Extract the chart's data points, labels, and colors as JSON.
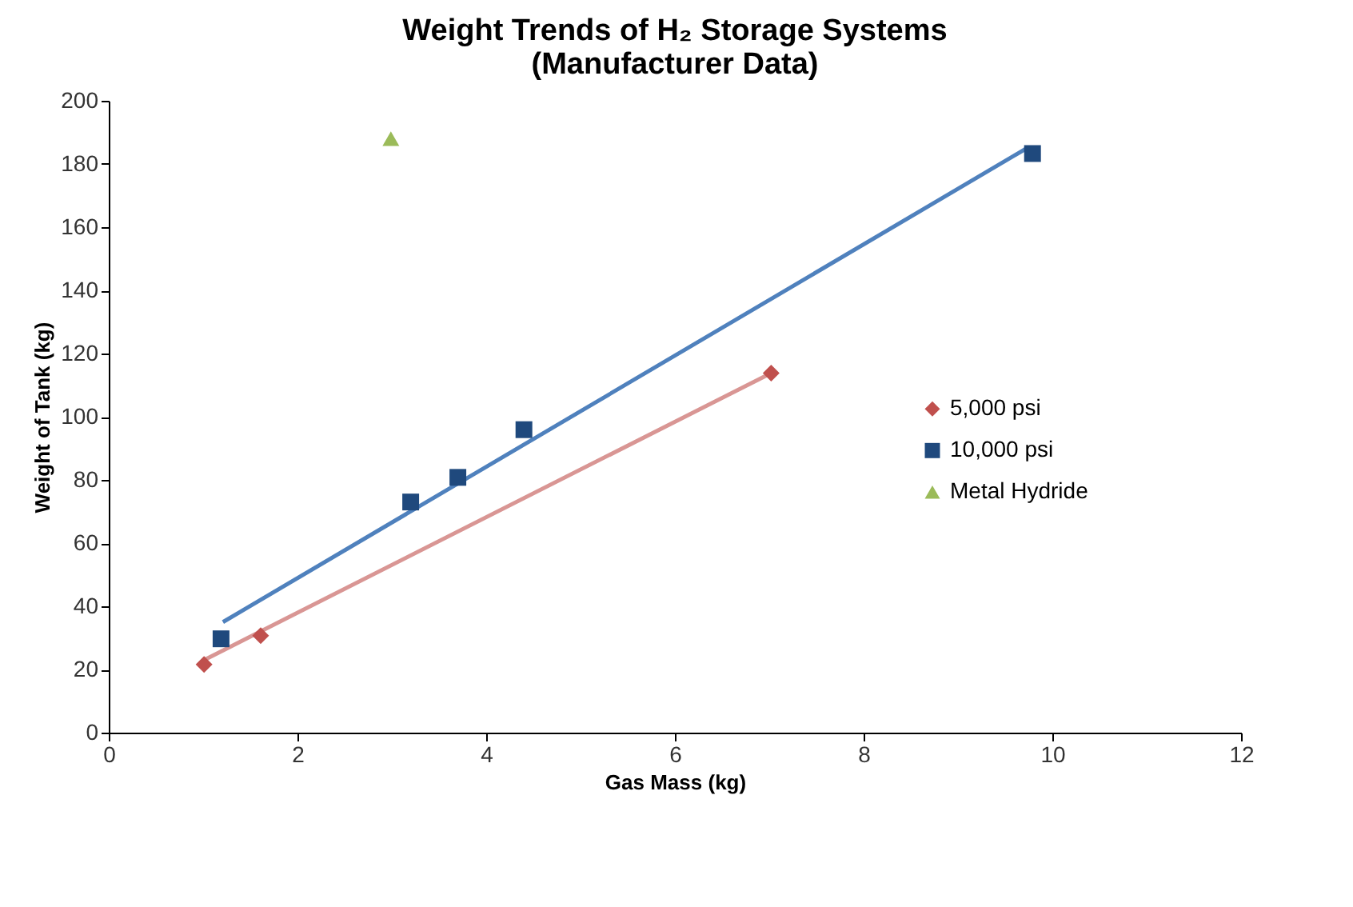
{
  "chart_data": {
    "type": "scatter",
    "title": "Weight Trends of H₂ Storage Systems",
    "subtitle": "(Manufacturer Data)",
    "xlabel": "Gas Mass (kg)",
    "ylabel": "Weight of Tank (kg)",
    "xlim": [
      0,
      12
    ],
    "xticks": [
      0,
      2,
      4,
      6,
      8,
      10,
      12
    ],
    "ylim": [
      0,
      200
    ],
    "yticks": [
      0,
      20,
      40,
      60,
      80,
      100,
      120,
      140,
      160,
      180,
      200
    ],
    "grid": false,
    "legend": "right",
    "series": [
      {
        "type": "line",
        "color": "#d99694",
        "marker": "none",
        "x": [
          1.01,
          7.02
        ],
        "values": [
          23,
          113.8
        ]
      },
      {
        "type": "line",
        "color": "#4f81bd",
        "marker": "none",
        "x": [
          1.21,
          9.73
        ],
        "values": [
          35,
          185
        ]
      },
      {
        "name": "5,000 psi",
        "color": "#c0504d",
        "marker": "diamond",
        "x": [
          1.01,
          1.61,
          7.02
        ],
        "values": [
          21.6,
          30.7,
          113.8
        ]
      },
      {
        "name": "10,000 psi",
        "color": "#1f497d",
        "marker": "square",
        "x": [
          1.19,
          3.2,
          3.7,
          4.4,
          9.79
        ],
        "values": [
          29.7,
          73,
          80.8,
          95.9,
          183.3
        ]
      },
      {
        "name": "Metal Hydride",
        "color": "#9bbb59",
        "marker": "triangle",
        "x": [
          2.99
        ],
        "values": [
          188
        ]
      }
    ]
  }
}
